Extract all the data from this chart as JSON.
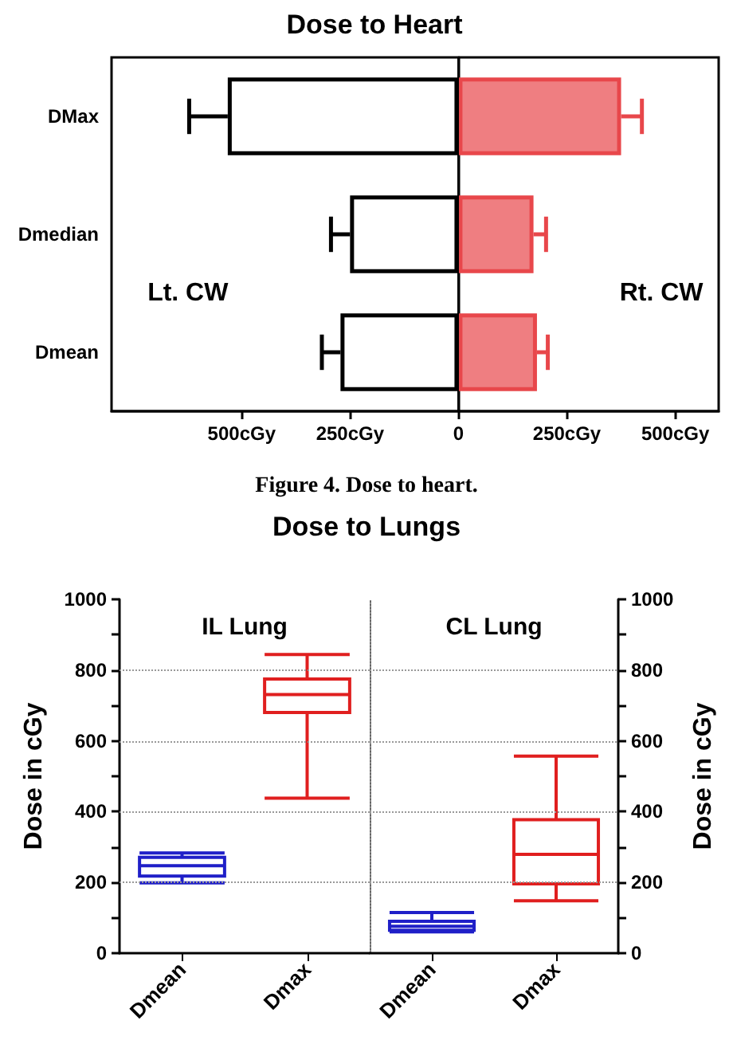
{
  "chart_data": [
    {
      "type": "bar",
      "orientation": "horizontal",
      "title": "Dose to Heart",
      "categories": [
        "DMax",
        "Dmedian",
        "Dmean"
      ],
      "series": [
        {
          "color": "#000000",
          "values": [
            -532,
            -250,
            -272
          ],
          "errors": [
            [
              -621,
              -532
            ],
            [
              -294,
              -250
            ],
            [
              -315,
              -272
            ]
          ]
        },
        {
          "color": "#e8474b",
          "values": [
            375,
            173,
            181
          ],
          "errors": [
            [
              375,
              423
            ],
            [
              173,
              202
            ],
            [
              181,
              206
            ]
          ]
        }
      ],
      "xlim": [
        -800,
        600
      ],
      "xticks": [
        {
          "value": -500,
          "label": "500cGy"
        },
        {
          "value": -250,
          "label": "250cGy"
        },
        0,
        {
          "value": 250,
          "label": "250cGy"
        },
        {
          "value": 500,
          "label": "500cGy"
        }
      ],
      "ref_lines": [
        {
          "axis": "x",
          "value": 0,
          "color": "#000000"
        }
      ],
      "grid": false,
      "annotations": [
        "Lt. CW",
        "Rt. CW",
        "Figure 4. Dose to heart."
      ]
    },
    {
      "type": "box",
      "title": "Dose to Lungs",
      "categories": [
        "Dmean",
        "Dmax"
      ],
      "colors": [
        "#1f1fc8",
        "#e01f1f"
      ],
      "boxes": [
        {
          "low": 199,
          "q1": 218,
          "median": 247,
          "q3": 271,
          "high": 283
        },
        {
          "low": 438,
          "q1": 680,
          "median": 731,
          "q3": 775,
          "high": 844
        }
      ],
      "ylabel": "Dose in cGy",
      "ylim": [
        0,
        1000
      ],
      "yticks": [
        0,
        {
          "value": 100,
          "label": null
        },
        200,
        {
          "value": 300,
          "label": null
        },
        400,
        {
          "value": 500,
          "label": null
        },
        600,
        {
          "value": 700,
          "label": null
        },
        800,
        {
          "value": 900,
          "label": null
        },
        1000
      ],
      "grid": "y",
      "annotations": [
        "IL Lung"
      ]
    },
    {
      "type": "box",
      "categories": [
        "Dmean",
        "Dmax"
      ],
      "colors": [
        "#1f1fc8",
        "#e01f1f"
      ],
      "boxes": [
        {
          "low": 60,
          "q1": 65,
          "median": 76,
          "q3": 90,
          "high": 115
        },
        {
          "low": 148,
          "q1": 196,
          "median": 279,
          "q3": 377,
          "high": 557
        }
      ],
      "ylabel": "Dose in cGy",
      "ylim": [
        0,
        1000
      ],
      "yticks": [
        0,
        {
          "value": 100,
          "label": null
        },
        200,
        {
          "value": 300,
          "label": null
        },
        400,
        {
          "value": 500,
          "label": null
        },
        600,
        {
          "value": 700,
          "label": null
        },
        800,
        {
          "value": 900,
          "label": null
        },
        1000
      ],
      "grid": "y",
      "annotations": [
        "CL Lung"
      ]
    }
  ]
}
